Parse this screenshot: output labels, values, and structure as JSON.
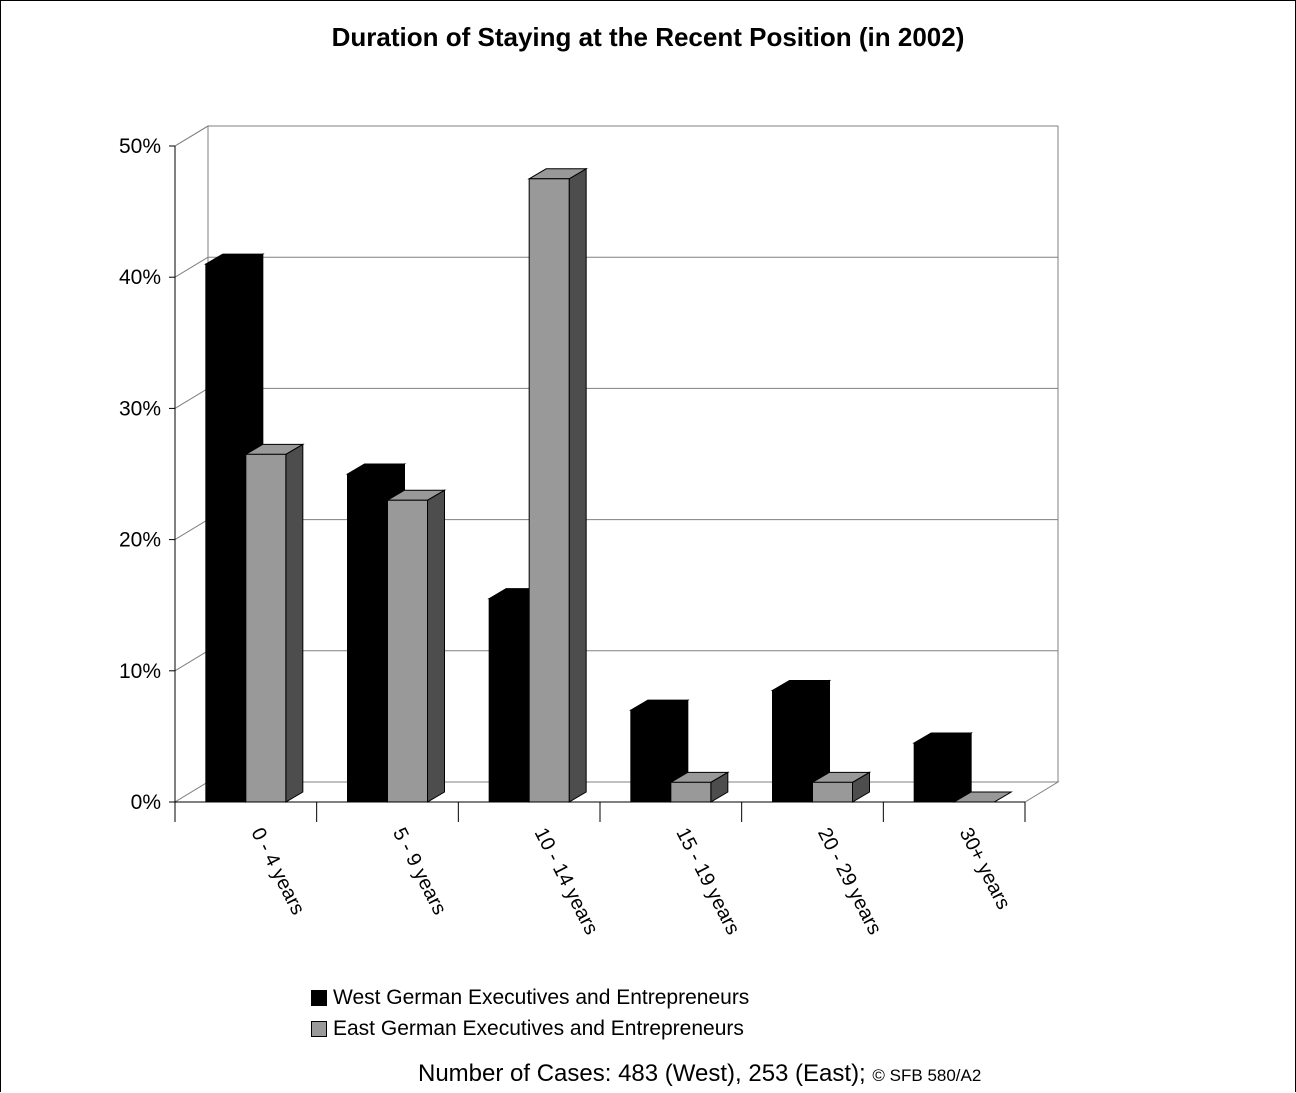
{
  "chart_data": {
    "type": "bar",
    "title": "Duration of Staying at the Recent Position (in 2002)",
    "categories": [
      "0 - 4 years",
      "5 - 9 years",
      "10 - 14 years",
      "15 - 19 years",
      "20 - 29 years",
      "30+ years"
    ],
    "series": [
      {
        "name": "West German Executives and Entrepreneurs",
        "color": "#000000",
        "values": [
          41,
          25,
          15.5,
          7,
          8.5,
          4.5
        ]
      },
      {
        "name": "East German Executives and Entrepreneurs",
        "color": "#999999",
        "values": [
          26.5,
          23,
          47.5,
          1.5,
          1.5,
          0
        ]
      }
    ],
    "y_ticks": [
      "0%",
      "10%",
      "20%",
      "30%",
      "40%",
      "50%"
    ],
    "ylim": [
      0,
      50
    ],
    "grid": true,
    "legend_position": "bottom"
  },
  "footnote": {
    "main": "Number of Cases: 483 (West), 253 (East);",
    "credit": "© SFB 580/A2"
  }
}
